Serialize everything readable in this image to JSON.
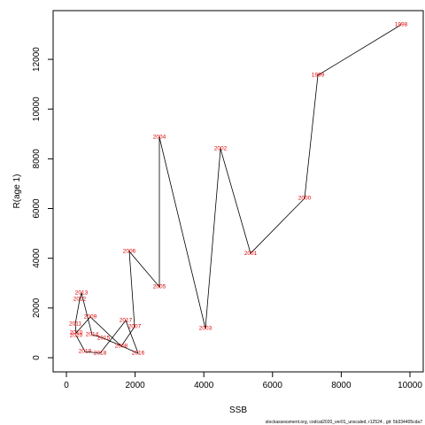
{
  "chart_data": {
    "type": "line",
    "x_label": "SSB",
    "y_label": "R(age 1)",
    "x": [
      9742,
      7320,
      6933,
      5361,
      4485,
      4046,
      2706,
      2706,
      1830,
      1985,
      1598,
      696,
      284,
      258,
      387,
      438,
      747,
      1082,
      2088,
      1727,
      979,
      541,
      284
    ],
    "values": [
      13390,
      11360,
      6410,
      4200,
      8405,
      1175,
      8868,
      2850,
      4274,
      1246,
      463,
      1638,
      997,
      1353,
      2350,
      2600,
      926,
      783,
      178,
      1496,
      178,
      249,
      890
    ],
    "point_labels": [
      "1998",
      "1999",
      "2000",
      "2001",
      "2002",
      "2003",
      "2004",
      "2005",
      "2006",
      "2007",
      "2008",
      "2009",
      "2010",
      "2011",
      "2012",
      "2013",
      "2014",
      "2015",
      "2016",
      "2017",
      "2018",
      "2019",
      "2020"
    ],
    "color": "#000000",
    "label_color": "#e00000",
    "xlim": [
      -387,
      10387
    ],
    "ylim": [
      -570,
      13960
    ],
    "xticks": [
      0,
      2000,
      4000,
      6000,
      8000,
      10000
    ],
    "yticks": [
      0,
      2000,
      4000,
      6000,
      8000,
      10000,
      12000
    ],
    "footnote": "stockassessment.org, codcat2020_ver01_unscaled, r12524 , git: 5b334405cda7"
  }
}
